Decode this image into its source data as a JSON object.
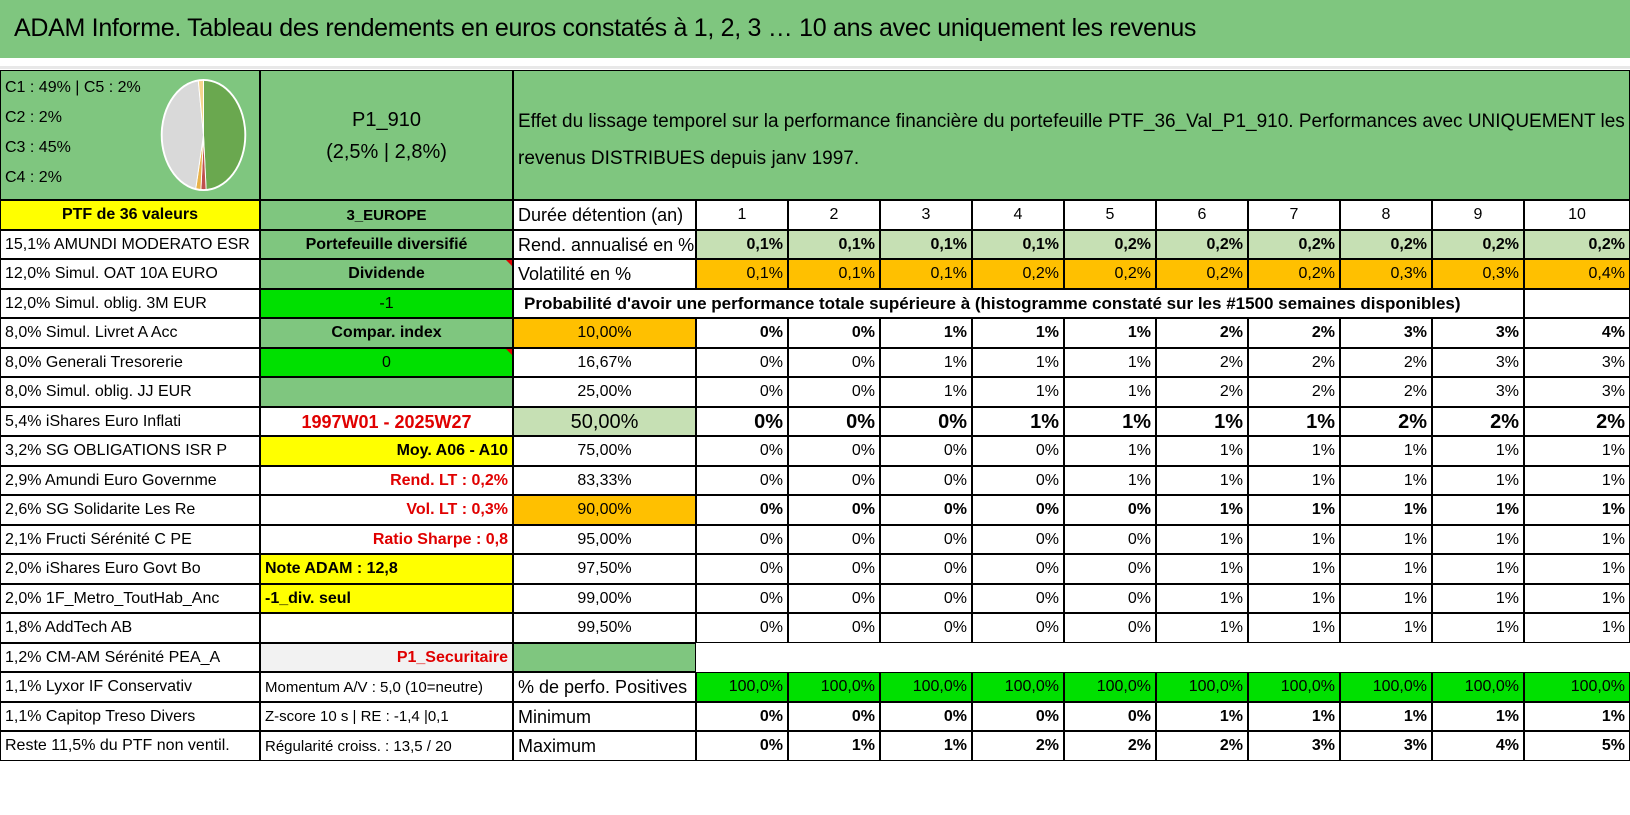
{
  "title": "ADAM Informe. Tableau des rendements en euros constatés à 1, 2, 3 … 10 ans avec uniquement les revenus",
  "legend": [
    "C1 : 49% | C5 : 2%",
    "C2 : 2%",
    "C3 : 45%",
    "C4 : 2%"
  ],
  "pie": [
    {
      "label": "C1",
      "value": 49,
      "color": "#6aa84f"
    },
    {
      "label": "C5",
      "value": 2,
      "color": "#c0504d"
    },
    {
      "label": "C2",
      "value": 2,
      "color": "#e8b24a"
    },
    {
      "label": "C3",
      "value": 45,
      "color": "#d9d9d9"
    },
    {
      "label": "C4",
      "value": 2,
      "color": "#f4d58d"
    }
  ],
  "portfolio": {
    "name": "P1_910",
    "rates": "(2,5% | 2,8%)"
  },
  "description": "Effet du lissage temporel sur la performance financière du portefeuille PTF_36_Val_P1_910. Performances avec UNIQUEMENT les revenus DISTRIBUES depuis janv 1997.",
  "holdings": [
    "PTF de 36 valeurs",
    "15,1% AMUNDI MODERATO ESR",
    "12,0% Simul. OAT 10A EURO",
    "12,0% Simul. oblig. 3M EUR",
    "8,0% Simul. Livret A Acc",
    "8,0% Generali Tresorerie",
    "8,0% Simul. oblig. JJ EUR",
    "5,4% iShares Euro Inflati",
    "3,2% SG OBLIGATIONS ISR P",
    "2,9% Amundi Euro Governme",
    "2,6% SG Solidarite Les Re",
    "2,1% Fructi Sérénité C PE",
    "2,0% iShares Euro Govt Bo",
    "2,0% 1F_Metro_ToutHab_Anc",
    "1,8% AddTech AB",
    "1,2% CM-AM Sérénité PEA_A",
    "1,1% Lyxor IF Conservativ",
    "1,1% Capitop Treso Divers",
    "Reste 11,5% du PTF non ventil."
  ],
  "info": [
    "3_EUROPE",
    "Portefeuille diversifié",
    "Dividende",
    "-1",
    "Compar. index",
    "0",
    "",
    "1997W01 - 2025W27",
    "Moy. A06 - A10",
    "Rend. LT : 0,2%",
    "Vol. LT : 0,3%",
    "Ratio Sharpe : 0,8",
    "Note ADAM : 12,8",
    "-1_div. seul",
    "",
    "P1_Securitaire",
    "Momentum A/V : 5,0 (10=neutre)",
    "Z-score 10 s | RE : -1,4 |0,1",
    "Régularité croiss. : 13,5 / 20"
  ],
  "table": {
    "duration_label": "Durée détention (an)",
    "years": [
      "1",
      "2",
      "3",
      "4",
      "5",
      "6",
      "7",
      "8",
      "9",
      "10"
    ],
    "rend_label": "Rend. annualisé en %",
    "rend": [
      "0,1%",
      "0,1%",
      "0,1%",
      "0,1%",
      "0,2%",
      "0,2%",
      "0,2%",
      "0,2%",
      "0,2%",
      "0,2%"
    ],
    "vol_label": "Volatilité en %",
    "vol": [
      "0,1%",
      "0,1%",
      "0,1%",
      "0,2%",
      "0,2%",
      "0,2%",
      "0,2%",
      "0,3%",
      "0,3%",
      "0,4%"
    ],
    "prob_title": "Probabilité d'avoir une performance totale supérieure à (histogramme constaté sur les #1500 semaines disponibles)",
    "prob_rows": [
      {
        "label": "10,00%",
        "values": [
          "0%",
          "0%",
          "1%",
          "1%",
          "1%",
          "2%",
          "2%",
          "3%",
          "3%",
          "4%"
        ]
      },
      {
        "label": "16,67%",
        "values": [
          "0%",
          "0%",
          "1%",
          "1%",
          "1%",
          "2%",
          "2%",
          "2%",
          "3%",
          "3%"
        ]
      },
      {
        "label": "25,00%",
        "values": [
          "0%",
          "0%",
          "1%",
          "1%",
          "1%",
          "2%",
          "2%",
          "2%",
          "3%",
          "3%"
        ]
      },
      {
        "label": "50,00%",
        "values": [
          "0%",
          "0%",
          "0%",
          "1%",
          "1%",
          "1%",
          "1%",
          "2%",
          "2%",
          "2%"
        ]
      },
      {
        "label": "75,00%",
        "values": [
          "0%",
          "0%",
          "0%",
          "0%",
          "1%",
          "1%",
          "1%",
          "1%",
          "1%",
          "1%"
        ]
      },
      {
        "label": "83,33%",
        "values": [
          "0%",
          "0%",
          "0%",
          "0%",
          "1%",
          "1%",
          "1%",
          "1%",
          "1%",
          "1%"
        ]
      },
      {
        "label": "90,00%",
        "values": [
          "0%",
          "0%",
          "0%",
          "0%",
          "0%",
          "1%",
          "1%",
          "1%",
          "1%",
          "1%"
        ]
      },
      {
        "label": "95,00%",
        "values": [
          "0%",
          "0%",
          "0%",
          "0%",
          "0%",
          "1%",
          "1%",
          "1%",
          "1%",
          "1%"
        ]
      },
      {
        "label": "97,50%",
        "values": [
          "0%",
          "0%",
          "0%",
          "0%",
          "0%",
          "1%",
          "1%",
          "1%",
          "1%",
          "1%"
        ]
      },
      {
        "label": "99,00%",
        "values": [
          "0%",
          "0%",
          "0%",
          "0%",
          "0%",
          "1%",
          "1%",
          "1%",
          "1%",
          "1%"
        ]
      },
      {
        "label": "99,50%",
        "values": [
          "0%",
          "0%",
          "0%",
          "0%",
          "0%",
          "1%",
          "1%",
          "1%",
          "1%",
          "1%"
        ]
      }
    ],
    "pos_label": "% de perfo. Positives",
    "pos": [
      "100,0%",
      "100,0%",
      "100,0%",
      "100,0%",
      "100,0%",
      "100,0%",
      "100,0%",
      "100,0%",
      "100,0%",
      "100,0%"
    ],
    "min_label": "Minimum",
    "min": [
      "0%",
      "0%",
      "0%",
      "0%",
      "0%",
      "1%",
      "1%",
      "1%",
      "1%",
      "1%"
    ],
    "max_label": "Maximum",
    "max": [
      "0%",
      "1%",
      "1%",
      "2%",
      "2%",
      "2%",
      "3%",
      "3%",
      "4%",
      "5%"
    ]
  }
}
